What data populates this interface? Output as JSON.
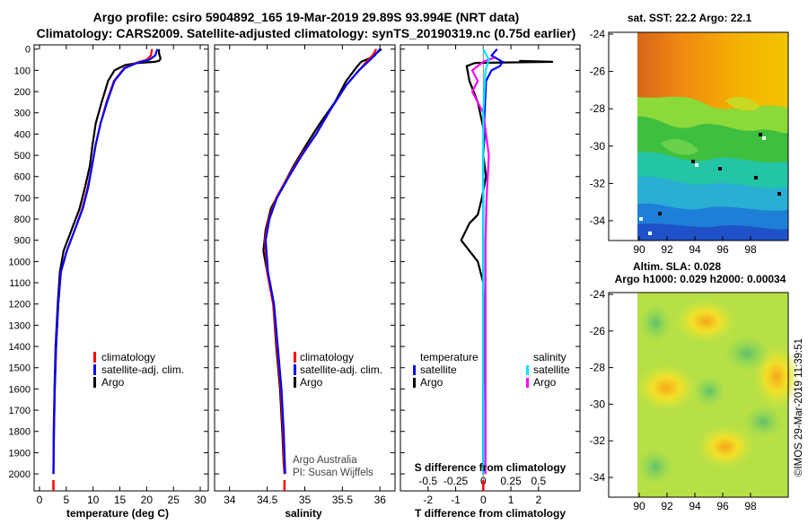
{
  "header": {
    "title_line1": "Argo profile: csiro 5904892_165 19-Mar-2019 29.89S 93.994E (NRT data)",
    "title_line2": "Climatology: CARS2009. Satellite-adjusted climatology: synTS_20190319.nc (0.75d earlier)"
  },
  "colors": {
    "argo": "#000000",
    "climatology": "#ff0000",
    "satellite": "#0000ff",
    "t_diff_sat": "#0000ff",
    "s_diff_sat": "#00e5ff",
    "s_diff_argo": "#ff00ff"
  },
  "chart_data": [
    {
      "type": "line",
      "name": "temperature",
      "xlabel": "temperature (deg C)",
      "ylabel": "depth",
      "xlim": [
        -1,
        31.5
      ],
      "ylim": [
        2080,
        -20
      ],
      "xticks": [
        "0",
        "5",
        "10",
        "15",
        "20",
        "25",
        "30"
      ],
      "yticks": [
        "0",
        "100",
        "200",
        "300",
        "400",
        "500",
        "600",
        "700",
        "800",
        "900",
        "1000",
        "1100",
        "1200",
        "1300",
        "1400",
        "1500",
        "1600",
        "1700",
        "1800",
        "1900",
        "2000"
      ],
      "legend": [
        "climatology",
        "satellite-adj. clim.",
        "Argo"
      ],
      "series": [
        {
          "name": "Argo",
          "color": "#000000",
          "x": [
            22.3,
            22.3,
            22.6,
            22.3,
            21.5,
            18.5,
            16.0,
            14.0,
            12.8,
            11.6,
            10.5,
            9.9,
            9.4,
            8.5,
            7.5,
            6.0,
            4.5,
            3.8,
            3.4,
            3.0,
            2.8,
            2.65,
            2.6
          ],
          "y": [
            0,
            20,
            45,
            55,
            60,
            65,
            75,
            100,
            150,
            250,
            350,
            450,
            550,
            650,
            750,
            850,
            950,
            1050,
            1200,
            1400,
            1600,
            1800,
            2000
          ]
        },
        {
          "name": "climatology",
          "color": "#ff0000",
          "x": [
            21.0,
            20.8,
            20.0,
            18.0,
            15.8,
            13.9,
            12.5,
            11.4,
            10.5,
            9.8,
            9.0,
            8.0,
            6.6,
            5.1,
            4.0,
            3.5,
            3.1,
            2.85,
            2.7,
            2.6
          ],
          "y": [
            0,
            30,
            50,
            65,
            90,
            150,
            250,
            350,
            450,
            550,
            650,
            750,
            850,
            950,
            1050,
            1200,
            1400,
            1600,
            1800,
            2000
          ]
        },
        {
          "name": "satellite-adj. clim.",
          "color": "#0000ff",
          "x": [
            22.0,
            21.6,
            20.5,
            18.2,
            15.9,
            14.0,
            12.6,
            11.4,
            10.5,
            9.8,
            9.1,
            8.1,
            6.6,
            5.1,
            4.0,
            3.5,
            3.1,
            2.85,
            2.7,
            2.6
          ],
          "y": [
            0,
            30,
            50,
            65,
            90,
            150,
            250,
            350,
            450,
            550,
            650,
            750,
            850,
            950,
            1050,
            1200,
            1400,
            1600,
            1800,
            2000
          ]
        }
      ]
    },
    {
      "type": "line",
      "name": "salinity",
      "xlabel": "salinity",
      "ylabel": "depth",
      "xlim": [
        33.8,
        36.2
      ],
      "ylim": [
        2080,
        -20
      ],
      "xticks": [
        "34",
        "34.5",
        "35",
        "35.5",
        "36"
      ],
      "legend": [
        "climatology",
        "satellite-adj. clim.",
        "Argo"
      ],
      "annotations": [
        "Argo Australia",
        "PI: Susan Wijffels"
      ],
      "series": [
        {
          "name": "Argo",
          "color": "#000000",
          "x": [
            36.02,
            35.95,
            35.88,
            35.75,
            35.7,
            35.55,
            35.4,
            35.2,
            35.02,
            34.85,
            34.7,
            34.55,
            34.48,
            34.45,
            34.5,
            34.58,
            34.62,
            34.67,
            34.7,
            34.72,
            34.73
          ],
          "y": [
            0,
            20,
            40,
            60,
            80,
            150,
            250,
            350,
            450,
            550,
            650,
            750,
            850,
            950,
            1050,
            1200,
            1400,
            1600,
            1800,
            1950,
            2000
          ]
        },
        {
          "name": "climatology",
          "color": "#ff0000",
          "x": [
            35.95,
            35.9,
            35.82,
            35.72,
            35.55,
            35.35,
            35.15,
            34.95,
            34.78,
            34.62,
            34.52,
            34.47,
            34.5,
            34.58,
            34.63,
            34.68,
            34.71,
            34.73
          ],
          "y": [
            0,
            30,
            60,
            100,
            170,
            280,
            400,
            500,
            600,
            700,
            800,
            900,
            1050,
            1200,
            1400,
            1600,
            1800,
            2000
          ]
        },
        {
          "name": "satellite-adj. clim.",
          "color": "#0000ff",
          "x": [
            36.0,
            35.93,
            35.84,
            35.72,
            35.55,
            35.35,
            35.15,
            34.96,
            34.79,
            34.63,
            34.53,
            34.48,
            34.51,
            34.59,
            34.64,
            34.69,
            34.72,
            34.74
          ],
          "y": [
            0,
            30,
            60,
            100,
            170,
            280,
            400,
            500,
            600,
            700,
            800,
            900,
            1050,
            1200,
            1400,
            1600,
            1800,
            2000
          ]
        }
      ]
    },
    {
      "type": "line",
      "name": "differences from climatology",
      "xlabel": "T difference from climatology",
      "x2label": "S difference from climatology",
      "ylabel": "depth",
      "xlim": [
        -3,
        3.5
      ],
      "x2lim": [
        -0.75,
        0.875
      ],
      "ylim": [
        2080,
        -20
      ],
      "xticks": [
        "-2",
        "-1",
        "0",
        "1",
        "2"
      ],
      "x2ticks": [
        "-0.5",
        "-0.25",
        "0",
        "0.25",
        "0.5"
      ],
      "legend_title_temperature": "temperature",
      "legend_title_salinity": "salinity",
      "legend_temperature": [
        "satellite",
        "Argo"
      ],
      "legend_salinity": [
        "satellite",
        "Argo"
      ],
      "series": [
        {
          "name": "T Argo",
          "color": "#000000",
          "x": [
            1.3,
            2.5,
            -0.3,
            -0.6,
            -0.5,
            -0.2,
            0.05,
            0.0,
            0.1,
            -0.05,
            -0.2,
            -0.5,
            -0.8,
            -0.5,
            -0.2,
            0.0,
            0.05,
            0.0,
            0.0
          ],
          "y": [
            55,
            60,
            65,
            80,
            150,
            250,
            400,
            500,
            600,
            700,
            780,
            820,
            900,
            950,
            1000,
            1100,
            1300,
            1700,
            2000
          ]
        },
        {
          "name": "T satellite",
          "color": "#0000ff",
          "x": [
            0.5,
            0.3,
            0.7,
            0.6,
            0.3,
            0.1,
            0.05,
            0.0,
            0.0,
            0.0,
            0.0,
            0.0
          ],
          "y": [
            0,
            30,
            60,
            80,
            100,
            150,
            300,
            500,
            800,
            1100,
            1500,
            2000
          ]
        },
        {
          "name": "S Argo",
          "color": "#ff00ff",
          "x": [
            0.1,
            0.0,
            -0.1,
            -0.05,
            -0.1,
            0.0,
            0.05,
            0.03,
            0.02,
            0.02,
            0.02
          ],
          "y": [
            40,
            60,
            100,
            150,
            200,
            300,
            500,
            700,
            900,
            1400,
            2000
          ]
        },
        {
          "name": "S satellite",
          "color": "#00e5ff",
          "x": [
            0.0,
            0.05,
            0.02,
            0.0,
            0.0,
            0.0
          ],
          "y": [
            0,
            50,
            100,
            300,
            700,
            2000
          ]
        }
      ]
    }
  ],
  "map_sst": {
    "title": "sat. SST: 22.2 Argo: 22.1",
    "yticks": [
      "-24",
      "-26",
      "-28",
      "-30",
      "-32",
      "-34"
    ],
    "xticks": [
      "90",
      "92",
      "94",
      "96",
      "98"
    ]
  },
  "map_sla": {
    "title_line1": "Altim. SLA: 0.028",
    "title_line2": "Argo h1000: 0.029 h2000: 0.00034",
    "yticks": [
      "-24",
      "-26",
      "-28",
      "-30",
      "-32",
      "-34"
    ],
    "xticks": [
      "90",
      "92",
      "94",
      "96",
      "98"
    ]
  },
  "footer": {
    "credit": "©IMOS 29-Mar-2019 11:39:51"
  }
}
